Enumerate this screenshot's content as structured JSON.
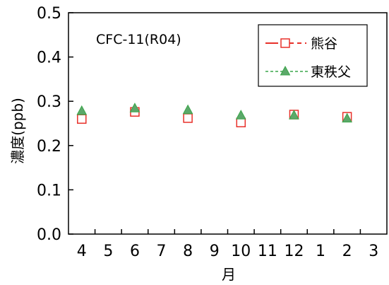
{
  "chart_data": {
    "type": "scatter",
    "title": "",
    "annotation": "CFC-11(R04)",
    "xlabel": "月",
    "ylabel": "濃度(ppb)",
    "ylim": [
      0.0,
      0.5
    ],
    "yticks": [
      "0.0",
      "0.1",
      "0.2",
      "0.3",
      "0.4",
      "0.5"
    ],
    "yticks_values": [
      0.0,
      0.1,
      0.2,
      0.3,
      0.4,
      0.5
    ],
    "categories": [
      "4",
      "5",
      "6",
      "7",
      "8",
      "9",
      "10",
      "11",
      "12",
      "1",
      "2",
      "3"
    ],
    "legend_position": "top-right",
    "grid": false,
    "series": [
      {
        "name": "熊谷",
        "marker": "square-open",
        "color": "#e8302a",
        "line_style": "solid-dashed",
        "points": [
          {
            "x": "4",
            "y": 0.26
          },
          {
            "x": "6",
            "y": 0.276
          },
          {
            "x": "8",
            "y": 0.262
          },
          {
            "x": "10",
            "y": 0.252
          },
          {
            "x": "12",
            "y": 0.27
          },
          {
            "x": "2",
            "y": 0.265
          }
        ]
      },
      {
        "name": "東秩父",
        "marker": "triangle-filled",
        "color": "#3aa64a",
        "fill": "#5ca86a",
        "line_style": "dashed",
        "points": [
          {
            "x": "4",
            "y": 0.278
          },
          {
            "x": "6",
            "y": 0.284
          },
          {
            "x": "8",
            "y": 0.28
          },
          {
            "x": "10",
            "y": 0.268
          },
          {
            "x": "12",
            "y": 0.268
          },
          {
            "x": "2",
            "y": 0.261
          }
        ]
      }
    ]
  }
}
